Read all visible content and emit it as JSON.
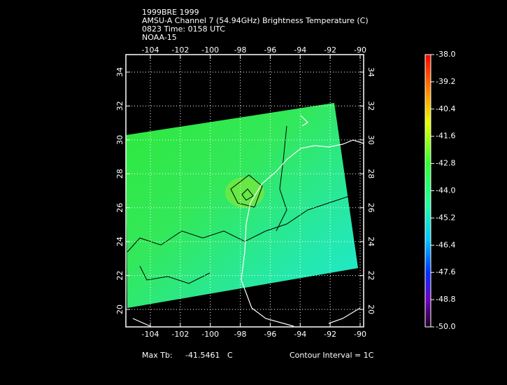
{
  "header": {
    "lines": [
      "1999BRE 1999",
      "AMSU-A Channel 7 (54.94GHz) Brightness Temperature (C)",
      "0823 Time: 0158 UTC",
      "NOAA-15"
    ]
  },
  "map": {
    "lon_ticks": [
      -104,
      -102,
      -100,
      -98,
      -96,
      -94,
      -92,
      -90
    ],
    "lat_ticks": [
      20,
      22,
      24,
      26,
      28,
      30,
      32,
      34
    ]
  },
  "colorbar": {
    "ticks": [
      "-38.0",
      "-39.2",
      "-40.4",
      "-41.6",
      "-42.8",
      "-44.0",
      "-45.2",
      "-46.4",
      "-47.6",
      "-48.8",
      "-50.0"
    ]
  },
  "footer": {
    "max_label": "Max Tb:",
    "max_value": "-41.5461",
    "max_unit": "C",
    "contour": "Contour Interval = 1C"
  }
}
